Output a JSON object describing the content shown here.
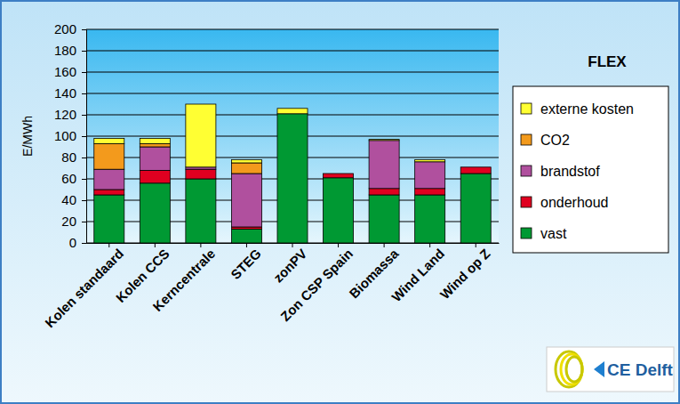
{
  "chart_data": {
    "type": "bar",
    "stacked": true,
    "title": "FLEX",
    "y_label": "E/MWh",
    "logo": "CE Delft",
    "categories": [
      "Kolen standaard",
      "Kolen CCS",
      "Kerncentrale",
      "STEG",
      "zonPV",
      "Zon CSP Spain",
      "Biomassa",
      "Wind Land",
      "Wind op Z"
    ],
    "series": [
      {
        "name": "vast",
        "color": "#009933",
        "values": [
          45,
          56,
          60,
          13,
          121,
          61,
          45,
          45,
          65
        ]
      },
      {
        "name": "onderhoud",
        "color": "#e00020",
        "values": [
          5,
          12,
          9,
          2,
          0,
          4,
          6,
          6,
          6
        ]
      },
      {
        "name": "brandstof",
        "color": "#b0509e",
        "values": [
          19,
          22,
          2,
          50,
          0,
          0,
          45,
          25,
          0
        ]
      },
      {
        "name": "CO2",
        "color": "#f39a1c",
        "values": [
          24,
          3,
          0,
          10,
          0,
          0,
          0,
          0,
          0
        ]
      },
      {
        "name": "externe kosten",
        "color": "#ffff33",
        "values": [
          5,
          5,
          59,
          3,
          5,
          0,
          1,
          2,
          0
        ]
      }
    ],
    "ylim": [
      0,
      200
    ],
    "yticks": [
      0,
      20,
      40,
      60,
      80,
      100,
      120,
      140,
      160,
      180,
      200
    ],
    "grid": true,
    "legend": "right"
  }
}
